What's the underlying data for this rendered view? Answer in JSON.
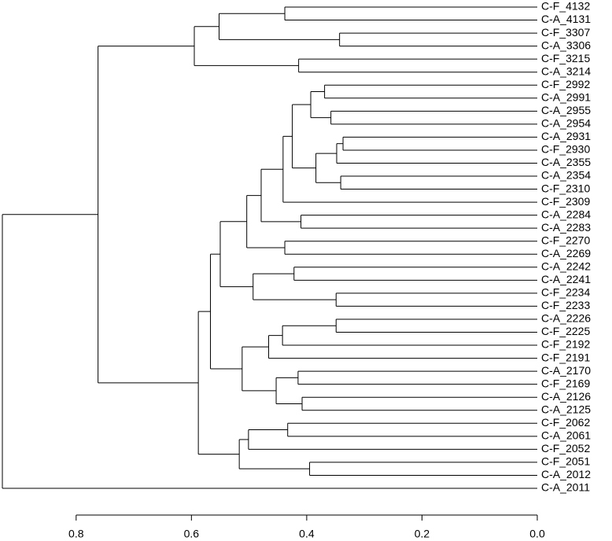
{
  "chart_data": {
    "type": "dendrogram",
    "leaves": [
      "C-F_4132",
      "C-A_4131",
      "C-F_3307",
      "C-A_3306",
      "C-F_3215",
      "C-A_3214",
      "C-F_2992",
      "C-A_2991",
      "C-A_2955",
      "C-A_2954",
      "C-A_2931",
      "C-F_2930",
      "C-A_2355",
      "C-A_2354",
      "C-F_2310",
      "C-F_2309",
      "C-A_2284",
      "C-A_2283",
      "C-F_2270",
      "C-A_2269",
      "C-A_2242",
      "C-A_2241",
      "C-F_2234",
      "C-F_2233",
      "C-A_2226",
      "C-F_2225",
      "C-F_2192",
      "C-F_2191",
      "C-A_2170",
      "C-F_2169",
      "C-A_2126",
      "C-A_2125",
      "C-F_2062",
      "C-A_2061",
      "C-F_2052",
      "C-F_2051",
      "C-A_2012",
      "C-A_2011"
    ],
    "merges": [
      {
        "children": [
          -1,
          -2
        ],
        "height": 0.438
      },
      {
        "children": [
          -3,
          -4
        ],
        "height": 0.343
      },
      {
        "children": [
          1,
          2
        ],
        "height": 0.552
      },
      {
        "children": [
          -5,
          -6
        ],
        "height": 0.414
      },
      {
        "children": [
          3,
          4
        ],
        "height": 0.595
      },
      {
        "children": [
          -7,
          -8
        ],
        "height": 0.369
      },
      {
        "children": [
          -9,
          -10
        ],
        "height": 0.358
      },
      {
        "children": [
          6,
          7
        ],
        "height": 0.393
      },
      {
        "children": [
          -11,
          -12
        ],
        "height": 0.337
      },
      {
        "children": [
          9,
          -13
        ],
        "height": 0.348
      },
      {
        "children": [
          -14,
          -15
        ],
        "height": 0.341
      },
      {
        "children": [
          10,
          11
        ],
        "height": 0.384
      },
      {
        "children": [
          8,
          12
        ],
        "height": 0.425
      },
      {
        "children": [
          13,
          -16
        ],
        "height": 0.441
      },
      {
        "children": [
          -17,
          -18
        ],
        "height": 0.41
      },
      {
        "children": [
          14,
          15
        ],
        "height": 0.479
      },
      {
        "children": [
          -19,
          -20
        ],
        "height": 0.438
      },
      {
        "children": [
          16,
          17
        ],
        "height": 0.504
      },
      {
        "children": [
          -21,
          -22
        ],
        "height": 0.422
      },
      {
        "children": [
          -23,
          -24
        ],
        "height": 0.349
      },
      {
        "children": [
          19,
          20
        ],
        "height": 0.493
      },
      {
        "children": [
          18,
          21
        ],
        "height": 0.55
      },
      {
        "children": [
          -25,
          -26
        ],
        "height": 0.349
      },
      {
        "children": [
          23,
          -27
        ],
        "height": 0.442
      },
      {
        "children": [
          24,
          -28
        ],
        "height": 0.466
      },
      {
        "children": [
          -29,
          -30
        ],
        "height": 0.415
      },
      {
        "children": [
          -31,
          -32
        ],
        "height": 0.408
      },
      {
        "children": [
          26,
          27
        ],
        "height": 0.453
      },
      {
        "children": [
          25,
          28
        ],
        "height": 0.512
      },
      {
        "children": [
          22,
          29
        ],
        "height": 0.567
      },
      {
        "children": [
          -33,
          -34
        ],
        "height": 0.433
      },
      {
        "children": [
          31,
          -35
        ],
        "height": 0.501
      },
      {
        "children": [
          -36,
          -37
        ],
        "height": 0.395
      },
      {
        "children": [
          32,
          33
        ],
        "height": 0.517
      },
      {
        "children": [
          30,
          34
        ],
        "height": 0.588
      },
      {
        "children": [
          5,
          35
        ],
        "height": 0.762
      },
      {
        "children": [
          36,
          -38
        ],
        "height": 0.928
      }
    ],
    "xlim": [
      0.928,
      0
    ],
    "xticks": [
      0.8,
      0.6,
      0.4,
      0.2,
      {
        "value": 0,
        "label": "0.0"
      }
    ]
  }
}
